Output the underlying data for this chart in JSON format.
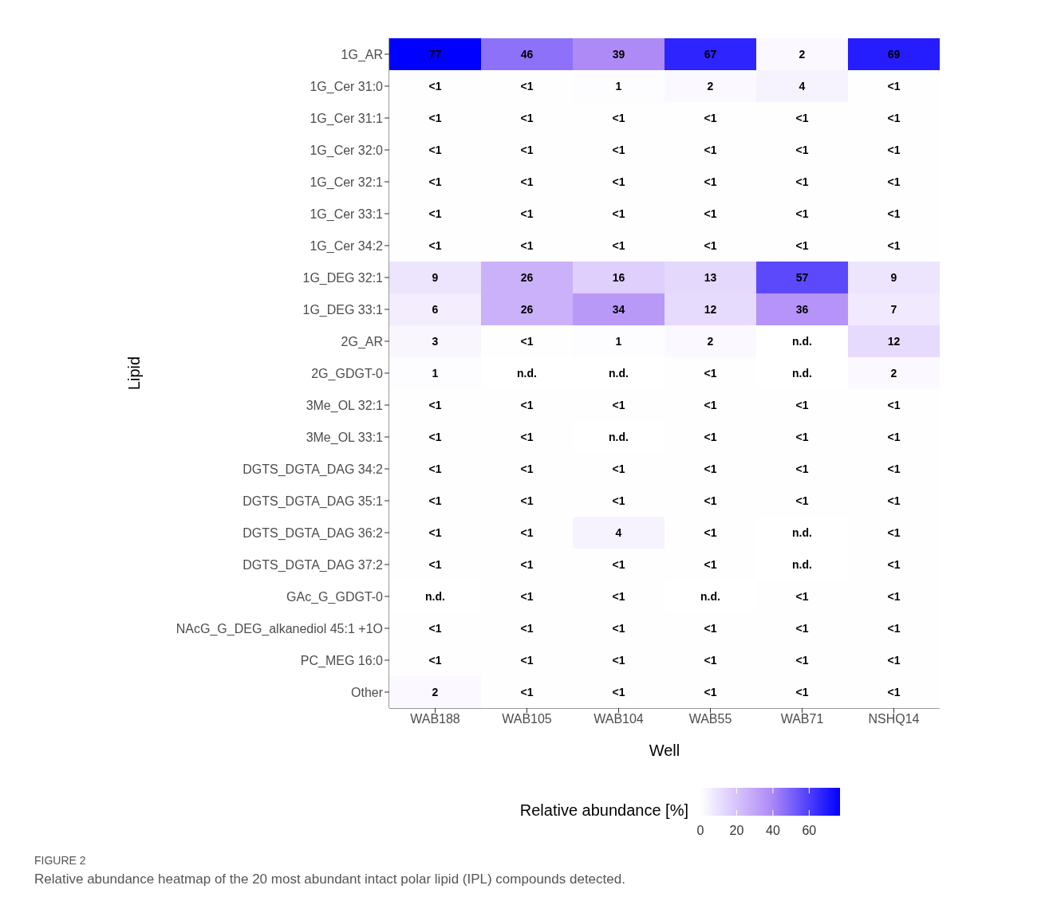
{
  "chart_data": {
    "type": "heatmap",
    "xlabel": "Well",
    "ylabel": "Lipid",
    "clabel": "Relative abundance [%]",
    "categories": [
      "WAB188",
      "WAB105",
      "WAB104",
      "WAB55",
      "WAB71",
      "NSHQ14"
    ],
    "y_categories": [
      "1G_AR",
      "1G_Cer 31:0",
      "1G_Cer 31:1",
      "1G_Cer 32:0",
      "1G_Cer 32:1",
      "1G_Cer 33:1",
      "1G_Cer 34:2",
      "1G_DEG 32:1",
      "1G_DEG 33:1",
      "2G_AR",
      "2G_GDGT-0",
      "3Me_OL 32:1",
      "3Me_OL 33:1",
      "DGTS_DGTA_DAG 34:2",
      "DGTS_DGTA_DAG 35:1",
      "DGTS_DGTA_DAG 36:2",
      "DGTS_DGTA_DAG 37:2",
      "GAc_G_GDGT-0",
      "NAcG_G_DEG_alkanediol 45:1 +1O",
      "PC_MEG 16:0",
      "Other"
    ],
    "cells": [
      [
        77,
        46,
        39,
        67,
        2,
        69
      ],
      [
        0.5,
        0.5,
        1,
        2,
        4,
        0.5
      ],
      [
        0.5,
        0.5,
        0.5,
        0.5,
        0.5,
        0.5
      ],
      [
        0.5,
        0.5,
        0.5,
        0.5,
        0.5,
        0.5
      ],
      [
        0.5,
        0.5,
        0.5,
        0.5,
        0.5,
        0.5
      ],
      [
        0.5,
        0.5,
        0.5,
        0.5,
        0.5,
        0.5
      ],
      [
        0.5,
        0.5,
        0.5,
        0.5,
        0.5,
        0.5
      ],
      [
        9,
        26,
        16,
        13,
        57,
        9
      ],
      [
        6,
        26,
        34,
        12,
        36,
        7
      ],
      [
        3,
        0.5,
        1,
        2,
        null,
        12
      ],
      [
        1,
        null,
        null,
        0.5,
        null,
        2
      ],
      [
        0.5,
        0.5,
        0.5,
        0.5,
        0.5,
        0.5
      ],
      [
        0.5,
        0.5,
        null,
        0.5,
        0.5,
        0.5
      ],
      [
        0.5,
        0.5,
        0.5,
        0.5,
        0.5,
        0.5
      ],
      [
        0.5,
        0.5,
        0.5,
        0.5,
        0.5,
        0.5
      ],
      [
        0.5,
        0.5,
        4,
        0.5,
        null,
        0.5
      ],
      [
        0.5,
        0.5,
        0.5,
        0.5,
        null,
        0.5
      ],
      [
        null,
        0.5,
        0.5,
        null,
        0.5,
        0.5
      ],
      [
        0.5,
        0.5,
        0.5,
        0.5,
        0.5,
        0.5
      ],
      [
        0.5,
        0.5,
        0.5,
        0.5,
        0.5,
        0.5
      ],
      [
        2,
        0.5,
        0.5,
        0.5,
        0.5,
        0.5
      ]
    ],
    "cell_labels": [
      [
        "77",
        "46",
        "39",
        "67",
        "2",
        "69"
      ],
      [
        "<1",
        "<1",
        "1",
        "2",
        "4",
        "<1"
      ],
      [
        "<1",
        "<1",
        "<1",
        "<1",
        "<1",
        "<1"
      ],
      [
        "<1",
        "<1",
        "<1",
        "<1",
        "<1",
        "<1"
      ],
      [
        "<1",
        "<1",
        "<1",
        "<1",
        "<1",
        "<1"
      ],
      [
        "<1",
        "<1",
        "<1",
        "<1",
        "<1",
        "<1"
      ],
      [
        "<1",
        "<1",
        "<1",
        "<1",
        "<1",
        "<1"
      ],
      [
        "9",
        "26",
        "16",
        "13",
        "57",
        "9"
      ],
      [
        "6",
        "26",
        "34",
        "12",
        "36",
        "7"
      ],
      [
        "3",
        "<1",
        "1",
        "2",
        "n.d.",
        "12"
      ],
      [
        "1",
        "n.d.",
        "n.d.",
        "<1",
        "n.d.",
        "2"
      ],
      [
        "<1",
        "<1",
        "<1",
        "<1",
        "<1",
        "<1"
      ],
      [
        "<1",
        "<1",
        "n.d.",
        "<1",
        "<1",
        "<1"
      ],
      [
        "<1",
        "<1",
        "<1",
        "<1",
        "<1",
        "<1"
      ],
      [
        "<1",
        "<1",
        "<1",
        "<1",
        "<1",
        "<1"
      ],
      [
        "<1",
        "<1",
        "4",
        "<1",
        "n.d.",
        "<1"
      ],
      [
        "<1",
        "<1",
        "<1",
        "<1",
        "n.d.",
        "<1"
      ],
      [
        "n.d.",
        "<1",
        "<1",
        "n.d.",
        "<1",
        "<1"
      ],
      [
        "<1",
        "<1",
        "<1",
        "<1",
        "<1",
        "<1"
      ],
      [
        "<1",
        "<1",
        "<1",
        "<1",
        "<1",
        "<1"
      ],
      [
        "2",
        "<1",
        "<1",
        "<1",
        "<1",
        "<1"
      ]
    ],
    "clim": [
      0,
      77
    ],
    "cticks": [
      0,
      20,
      40,
      60
    ],
    "annotations": [
      "FIGURE 2",
      "Relative abundance heatmap of the 20 most abundant intact polar lipid (IPL) compounds detected."
    ]
  }
}
